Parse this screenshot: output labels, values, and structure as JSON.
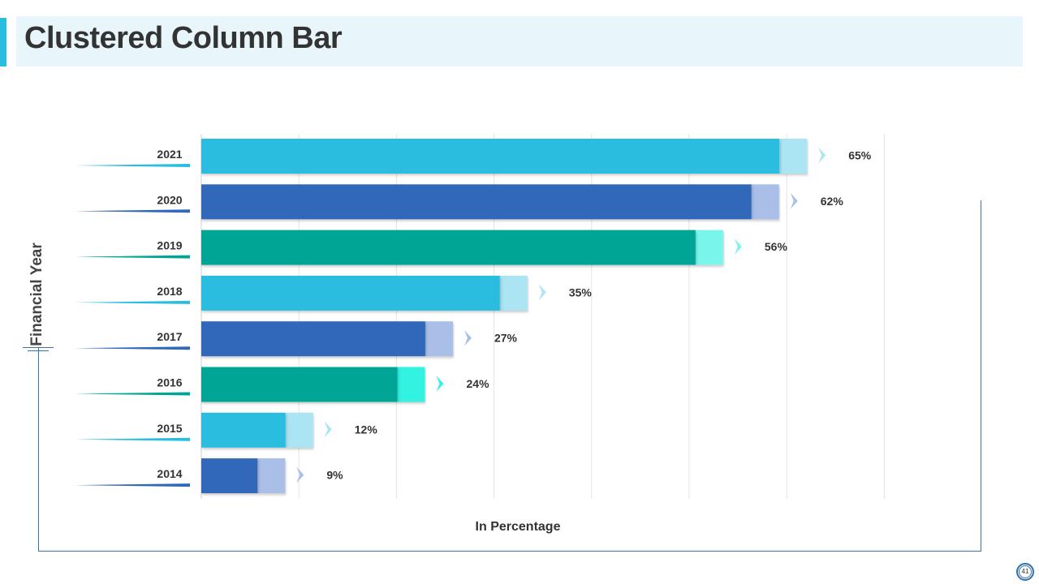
{
  "title": "Clustered Column Bar",
  "page_number": "41",
  "colors": {
    "cyan": "#29bde0",
    "cyan_light": "#abe4f2",
    "blue": "#3268b9",
    "blue_light": "#a9bfe8",
    "teal": "#01a596",
    "teal_light": "#33f2e2",
    "teal_light_alt": "#7af5ec"
  },
  "chart_data": {
    "type": "bar",
    "orientation": "horizontal",
    "categories": [
      "2021",
      "2020",
      "2019",
      "2018",
      "2017",
      "2016",
      "2015",
      "2014"
    ],
    "values": [
      65,
      62,
      56,
      35,
      27,
      24,
      12,
      9
    ],
    "data_labels": [
      "65%",
      "62%",
      "56%",
      "35%",
      "27%",
      "24%",
      "12%",
      "9%"
    ],
    "bar_colors": [
      "cyan",
      "blue",
      "teal",
      "cyan",
      "blue",
      "teal",
      "cyan",
      "blue"
    ],
    "xlabel": "In Percentage",
    "ylabel": "Financial Year",
    "grid": true,
    "legend": "none"
  }
}
